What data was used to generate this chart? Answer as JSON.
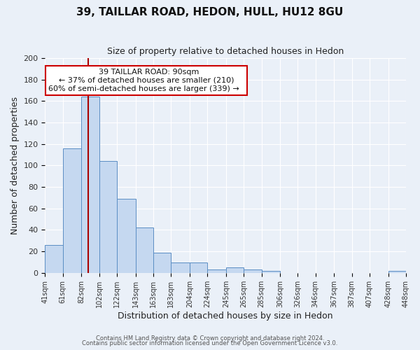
{
  "title": "39, TAILLAR ROAD, HEDON, HULL, HU12 8GU",
  "subtitle": "Size of property relative to detached houses in Hedon",
  "xlabel": "Distribution of detached houses by size in Hedon",
  "ylabel": "Number of detached properties",
  "bar_values": [
    26,
    116,
    164,
    104,
    69,
    42,
    19,
    10,
    10,
    3,
    5,
    3,
    2,
    0,
    0,
    0,
    0,
    0,
    0,
    2
  ],
  "bin_edges": [
    41,
    61,
    82,
    102,
    122,
    143,
    163,
    183,
    204,
    224,
    245,
    265,
    285,
    306,
    326,
    346,
    367,
    387,
    407,
    428,
    448
  ],
  "bar_color": "#c5d8f0",
  "bar_edge_color": "#5b8ec4",
  "red_line_x": 90,
  "annotation_title": "39 TAILLAR ROAD: 90sqm",
  "annotation_line1": "← 37% of detached houses are smaller (210)",
  "annotation_line2": "60% of semi-detached houses are larger (339) →",
  "annotation_box_color": "#ffffff",
  "annotation_box_edge": "#cc0000",
  "red_line_color": "#aa0000",
  "ylim": [
    0,
    200
  ],
  "yticks": [
    0,
    20,
    40,
    60,
    80,
    100,
    120,
    140,
    160,
    180,
    200
  ],
  "background_color": "#eaf0f8",
  "plot_bg_color": "#eaf0f8",
  "grid_color": "#ffffff",
  "footer1": "Contains HM Land Registry data © Crown copyright and database right 2024.",
  "footer2": "Contains public sector information licensed under the Open Government Licence v3.0."
}
